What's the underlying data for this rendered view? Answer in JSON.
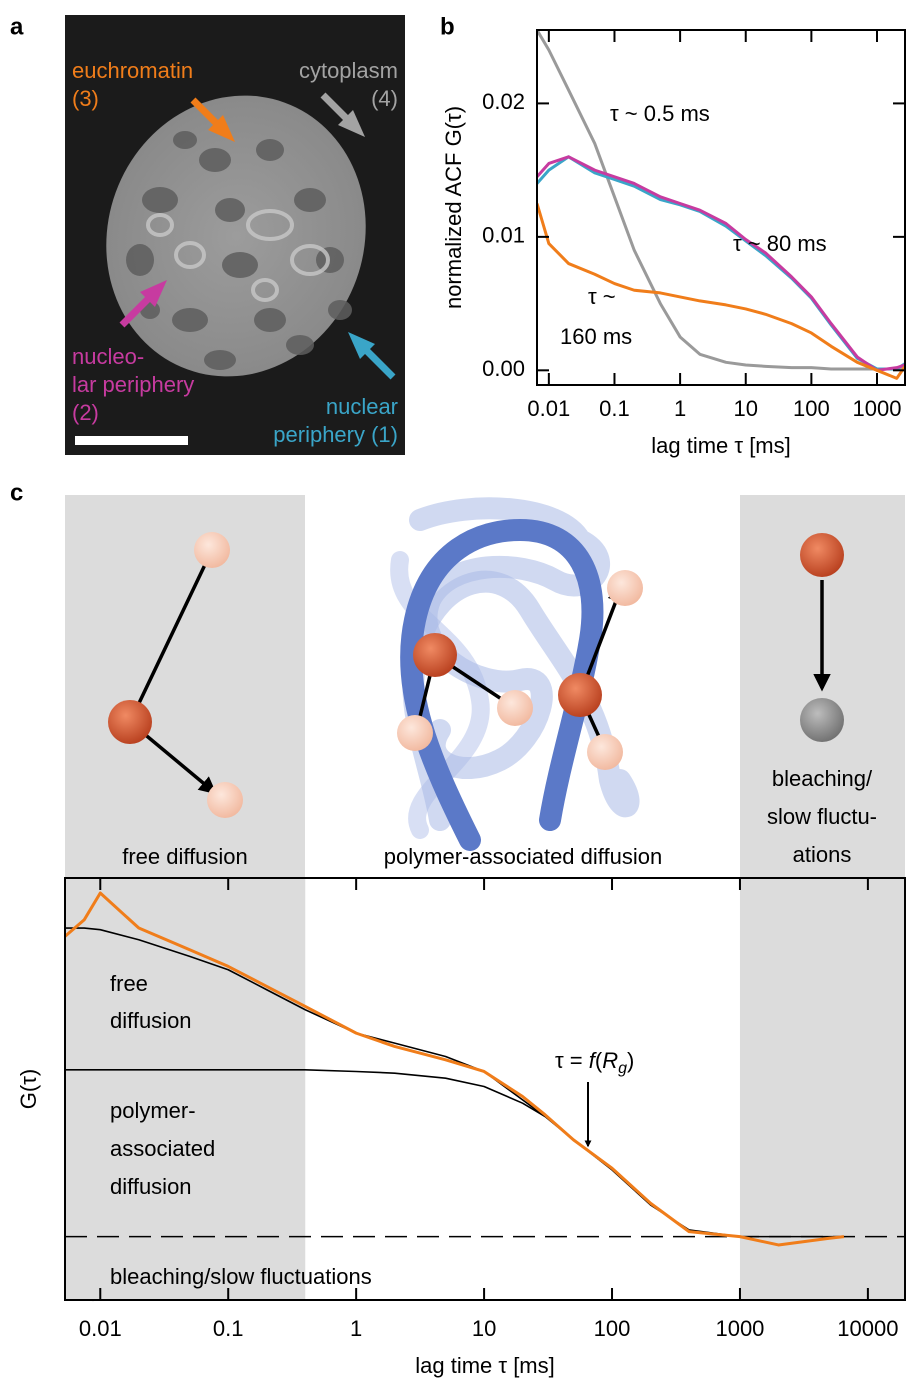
{
  "panel_labels": [
    "a",
    "b",
    "c"
  ],
  "image_panel": {
    "labels": [
      {
        "lines": [
          "euchromatin",
          "(3)"
        ],
        "color": "#f07d1a"
      },
      {
        "lines": [
          "cytoplasm",
          "(4)"
        ],
        "color": "#a3a3a3"
      },
      {
        "lines": [
          "nucleo-",
          "lar periphery",
          "(2)"
        ],
        "color": "#c73ba0"
      },
      {
        "lines": [
          "nuclear",
          "periphery (1)"
        ],
        "color": "#3aa5c8"
      }
    ]
  },
  "diagram": {
    "labels": [
      {
        "lines": [
          "free diffusion"
        ]
      },
      {
        "lines": [
          "polymer-associated diffusion"
        ]
      },
      {
        "lines": [
          "bleaching/",
          "slow fluctu-",
          "ations"
        ]
      }
    ]
  },
  "chart_data": [
    {
      "type": "line",
      "xscale": "log",
      "ylabel": "normalized ACF G(τ)",
      "xlabel": "lag time τ [ms]",
      "xlim": [
        0.0066,
        2670
      ],
      "xticks": [
        0.01,
        0.1,
        1,
        10,
        100,
        1000
      ],
      "ylim": [
        -0.0011,
        0.0255
      ],
      "yticks": [
        {
          "value": 0,
          "label": "0.00"
        },
        {
          "value": 0.01,
          "label": "0.01"
        },
        {
          "value": 0.02,
          "label": "0.02"
        }
      ],
      "x": [
        0.0066,
        0.01,
        0.02,
        0.05,
        0.1,
        0.2,
        0.5,
        1,
        2,
        5,
        10,
        20,
        50,
        100,
        200,
        500,
        1000,
        2000,
        2670
      ],
      "series": [
        {
          "color": "#9a9a9a",
          "values": [
            0.0255,
            0.024,
            0.021,
            0.017,
            0.013,
            0.009,
            0.005,
            0.0025,
            0.0012,
            0.0006,
            0.0004,
            0.0003,
            0.0002,
            0.0002,
            0.0001,
            0.0001,
            0.0001,
            0.0001,
            0.0001
          ]
        },
        {
          "color": "#3aa5c8",
          "values": [
            0.014,
            0.015,
            0.016,
            0.0148,
            0.0143,
            0.0138,
            0.0128,
            0.0124,
            0.0119,
            0.0108,
            0.0097,
            0.0086,
            0.0069,
            0.0054,
            0.0034,
            0.0009,
            0.0001,
            0.0001,
            0.0005
          ]
        },
        {
          "color": "#c73ba0",
          "values": [
            0.0145,
            0.0155,
            0.016,
            0.015,
            0.0145,
            0.014,
            0.013,
            0.0125,
            0.012,
            0.011,
            0.0098,
            0.0088,
            0.007,
            0.0055,
            0.0035,
            0.001,
            0.0,
            0.0002,
            0.0004
          ]
        },
        {
          "color": "#f07d1a",
          "values": [
            0.0125,
            0.0095,
            0.008,
            0.0072,
            0.0065,
            0.006,
            0.0058,
            0.0055,
            0.0052,
            0.0049,
            0.0046,
            0.0042,
            0.0035,
            0.0028,
            0.0018,
            0.0006,
            0.0,
            -0.0006,
            0.0003
          ]
        }
      ],
      "annotations": [
        {
          "lines": [
            "τ ~ 0.5 ms"
          ]
        },
        {
          "lines": [
            "τ ~ 80 ms"
          ]
        },
        {
          "lines": [
            "τ ~",
            "160 ms"
          ]
        }
      ]
    },
    {
      "type": "line",
      "xscale": "log",
      "ylabel": "G(τ)",
      "xlabel": "lag time τ [ms]",
      "xlim": [
        0.0053,
        19500
      ],
      "xticks": [
        0.01,
        0.1,
        1,
        10,
        100,
        1000,
        10000
      ],
      "ylim": [
        -0.38,
        2.15
      ],
      "shaded_ranges": [
        [
          0.0053,
          0.4
        ],
        [
          1000,
          19500
        ]
      ],
      "shade_color": "#dcdcdc",
      "hline": {
        "value": 0,
        "dashed": true
      },
      "x": [
        0.0053,
        0.0075,
        0.01,
        0.02,
        0.05,
        0.1,
        0.2,
        0.4,
        1,
        2,
        5,
        10,
        20,
        30,
        50,
        100,
        200,
        400,
        1000,
        2000,
        5000,
        6500
      ],
      "series": [
        {
          "color": "#000000",
          "values": [
            1,
            1,
            1,
            1,
            1,
            1,
            1,
            1,
            0.99,
            0.98,
            0.95,
            0.9,
            0.8,
            0.72,
            null,
            null,
            null,
            null,
            null,
            null,
            null,
            null
          ]
        },
        {
          "color": "#000000",
          "values": [
            1.85,
            1.85,
            1.84,
            1.78,
            1.68,
            1.6,
            1.48,
            1.36,
            1.22,
            1.16,
            1.08,
            0.99,
            0.82,
            0.72,
            0.58,
            0.4,
            0.19,
            0.04,
            0.0,
            0.0,
            0.0,
            0.0
          ]
        },
        {
          "color": "#f07d1a",
          "values": [
            1.8,
            1.9,
            2.06,
            1.85,
            1.72,
            1.62,
            1.5,
            1.38,
            1.22,
            1.14,
            1.06,
            0.99,
            0.84,
            0.73,
            0.58,
            0.41,
            0.2,
            0.03,
            0.0,
            -0.05,
            -0.01,
            0.0
          ]
        }
      ],
      "region_labels": [
        {
          "lines": [
            "free",
            "diffusion"
          ]
        },
        {
          "lines": [
            "polymer-",
            "associated",
            "diffusion"
          ]
        },
        {
          "lines": [
            "bleaching/slow fluctuations"
          ]
        }
      ],
      "annotation": {
        "parts": [
          "τ = ",
          "f",
          "(",
          "R",
          "g",
          ")"
        ]
      }
    }
  ]
}
